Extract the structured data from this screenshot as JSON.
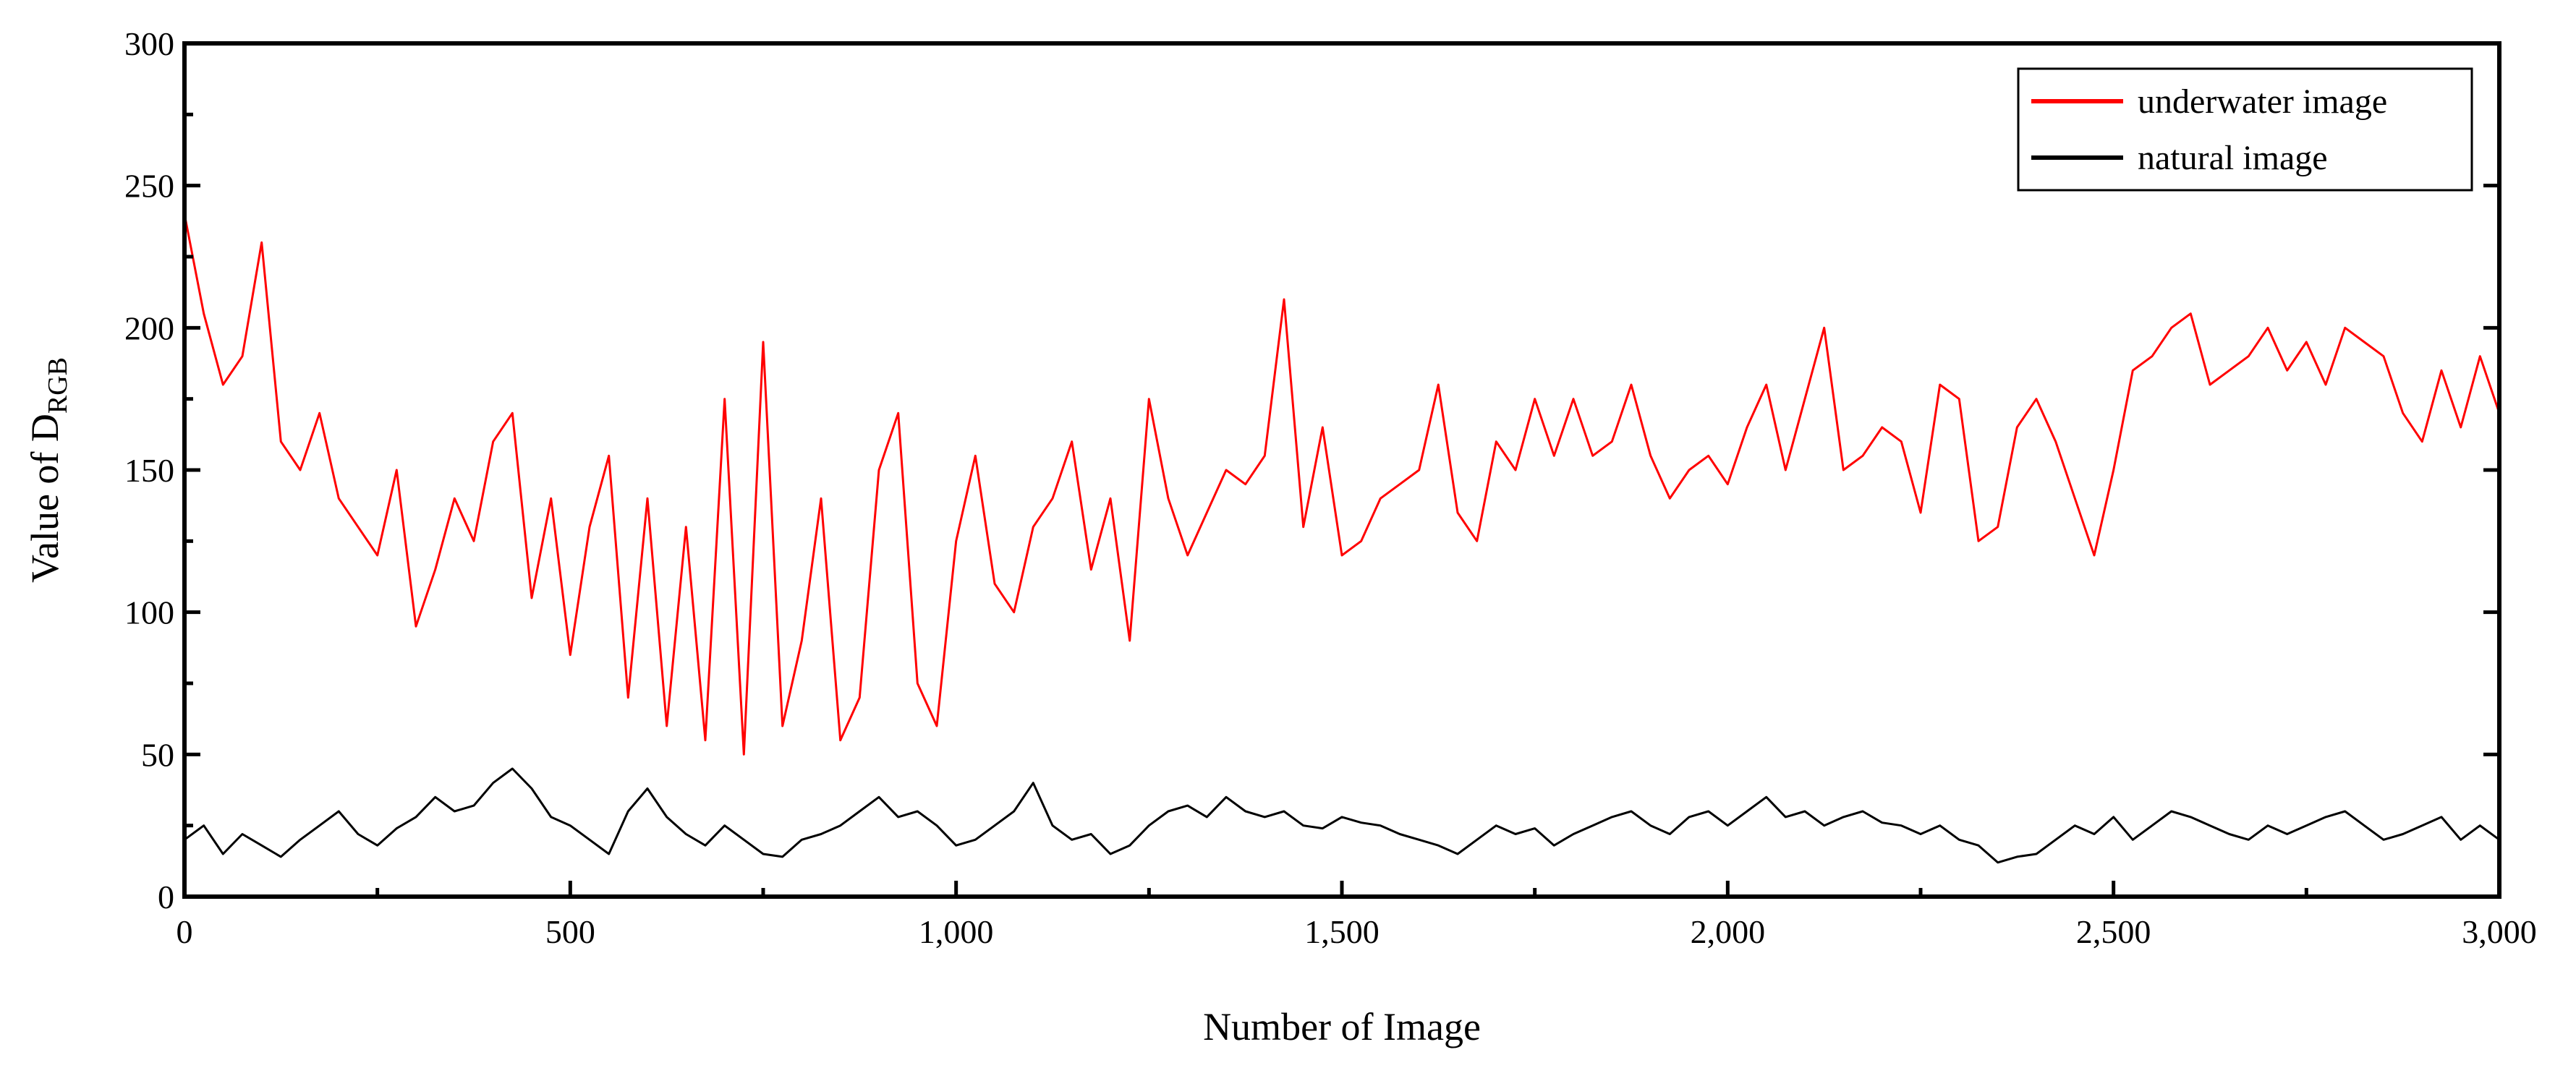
{
  "chart_data": {
    "type": "line",
    "title": "",
    "xlabel": "Number of Image",
    "ylabel": {
      "main": "Value of D",
      "subscript": "RGB"
    },
    "xlim": [
      0,
      3000
    ],
    "ylim": [
      0,
      300
    ],
    "x_ticks": [
      "0",
      "500",
      "1,000",
      "1,500",
      "2,000",
      "2,500",
      "3,000"
    ],
    "y_ticks": [
      "0",
      "50",
      "100",
      "150",
      "200",
      "250",
      "300"
    ],
    "grid": false,
    "legend_position": "top-right",
    "x_sampling": {
      "start": 0,
      "end": 3000,
      "step": 25
    },
    "series": [
      {
        "name": "underwater image",
        "color": "#ff0000",
        "values": [
          240,
          205,
          180,
          190,
          230,
          160,
          150,
          170,
          140,
          130,
          120,
          150,
          95,
          115,
          140,
          125,
          160,
          170,
          105,
          140,
          85,
          130,
          155,
          70,
          140,
          60,
          130,
          55,
          175,
          50,
          195,
          60,
          90,
          140,
          55,
          70,
          150,
          170,
          75,
          60,
          125,
          155,
          110,
          100,
          130,
          140,
          160,
          115,
          140,
          90,
          175,
          140,
          120,
          135,
          150,
          145,
          155,
          210,
          130,
          165,
          120,
          125,
          140,
          145,
          150,
          180,
          135,
          125,
          160,
          150,
          175,
          155,
          175,
          155,
          160,
          180,
          155,
          140,
          150,
          155,
          145,
          165,
          180,
          150,
          175,
          200,
          150,
          155,
          165,
          160,
          135,
          180,
          175,
          125,
          130,
          165,
          175,
          160,
          140,
          120,
          150,
          185,
          190,
          200,
          205,
          180,
          185,
          190,
          200,
          185,
          195,
          180,
          200,
          195,
          190,
          170,
          160,
          185,
          165,
          190,
          170
        ]
      },
      {
        "name": "natural image",
        "color": "#000000",
        "values": [
          20,
          25,
          15,
          22,
          18,
          14,
          20,
          25,
          30,
          22,
          18,
          24,
          28,
          35,
          30,
          32,
          40,
          45,
          38,
          28,
          25,
          20,
          15,
          30,
          38,
          28,
          22,
          18,
          25,
          20,
          15,
          14,
          20,
          22,
          25,
          30,
          35,
          28,
          30,
          25,
          18,
          20,
          25,
          30,
          40,
          25,
          20,
          22,
          15,
          18,
          25,
          30,
          32,
          28,
          35,
          30,
          28,
          30,
          25,
          24,
          28,
          26,
          25,
          22,
          20,
          18,
          15,
          20,
          25,
          22,
          24,
          18,
          22,
          25,
          28,
          30,
          25,
          22,
          28,
          30,
          25,
          30,
          35,
          28,
          30,
          25,
          28,
          30,
          26,
          25,
          22,
          25,
          20,
          18,
          12,
          14,
          15,
          20,
          25,
          22,
          28,
          20,
          25,
          30,
          28,
          25,
          22,
          20,
          25,
          22,
          25,
          28,
          30,
          25,
          20,
          22,
          25,
          28,
          20,
          25,
          20
        ]
      }
    ]
  }
}
